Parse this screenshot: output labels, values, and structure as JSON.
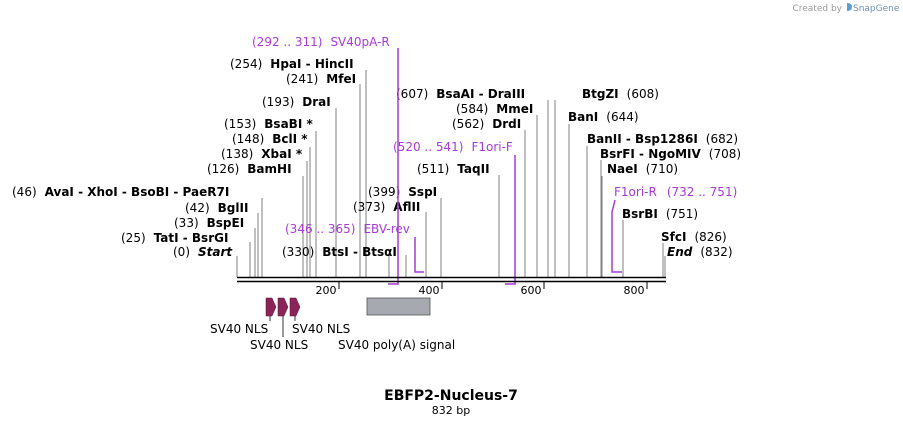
{
  "app": {
    "credit": "Created by",
    "brand": "SnapGene",
    "brand_color": "#5aa0d8"
  },
  "map": {
    "name": "EBFP2-Nucleus-7",
    "length_label": "832 bp",
    "length": 832
  },
  "axis": {
    "ticks": [
      {
        "value": 200,
        "label": "200"
      },
      {
        "value": 400,
        "label": "400"
      },
      {
        "value": 600,
        "label": "600"
      },
      {
        "value": 800,
        "label": "800"
      }
    ]
  },
  "enzymes": [
    {
      "pos": "(0)",
      "name": "Start",
      "italic": true
    },
    {
      "pos": "(25)",
      "name": "TatI - BsrGI"
    },
    {
      "pos": "(33)",
      "name": "BspEI"
    },
    {
      "pos": "(42)",
      "name": "BglII"
    },
    {
      "pos": "(46)",
      "name": "AvaI - XhoI - BsoBI - PaeR7I"
    },
    {
      "pos": "(126)",
      "name": "BamHI"
    },
    {
      "pos": "(138)",
      "name": "XbaI *"
    },
    {
      "pos": "(148)",
      "name": "BclI *"
    },
    {
      "pos": "(153)",
      "name": "BsaBI *"
    },
    {
      "pos": "(193)",
      "name": "DraI"
    },
    {
      "pos": "(241)",
      "name": "MfeI"
    },
    {
      "pos": "(254)",
      "name": "HpaI - HincII"
    },
    {
      "pos": "(330)",
      "name": "BtsI - BtsαI"
    },
    {
      "pos": "(373)",
      "name": "AflII"
    },
    {
      "pos": "(399)",
      "name": "SspI"
    },
    {
      "pos": "(511)",
      "name": "TaqII"
    },
    {
      "pos": "(562)",
      "name": "DrdI"
    },
    {
      "pos": "(584)",
      "name": "MmeI"
    },
    {
      "pos": "(607)",
      "name": "BsaAI - DraIII"
    },
    {
      "pos": "(608)",
      "name": "BtgZI"
    },
    {
      "pos": "(644)",
      "name": "BanI"
    },
    {
      "pos": "(682)",
      "name": "BanII - Bsp1286I"
    },
    {
      "pos": "(708)",
      "name": "BsrFI - NgoMIV"
    },
    {
      "pos": "(710)",
      "name": "NaeI"
    },
    {
      "pos": "(751)",
      "name": "BsrBI"
    },
    {
      "pos": "(826)",
      "name": "SfcI"
    },
    {
      "pos": "(832)",
      "name": "End",
      "italic": true
    }
  ],
  "primers": [
    {
      "range": "(292 .. 311)",
      "name": "SV40pA-R"
    },
    {
      "range": "(346 .. 365)",
      "name": "EBV-rev"
    },
    {
      "range": "(520 .. 541)",
      "name": "F1ori-F"
    },
    {
      "range": "(732 .. 751)",
      "name": "F1ori-R"
    }
  ],
  "features": [
    {
      "name": "SV40 NLS",
      "type": "arrow",
      "color": "#8b2457"
    },
    {
      "name": "SV40 NLS",
      "type": "arrow",
      "color": "#8b2457"
    },
    {
      "name": "SV40 NLS",
      "type": "arrow",
      "color": "#8b2457"
    },
    {
      "name": "SV40 poly(A) signal",
      "type": "box",
      "color": "#a6aab0"
    }
  ],
  "colors": {
    "primer": "#a93ad6",
    "backbone": "#000000",
    "cut_line": "#808080"
  }
}
